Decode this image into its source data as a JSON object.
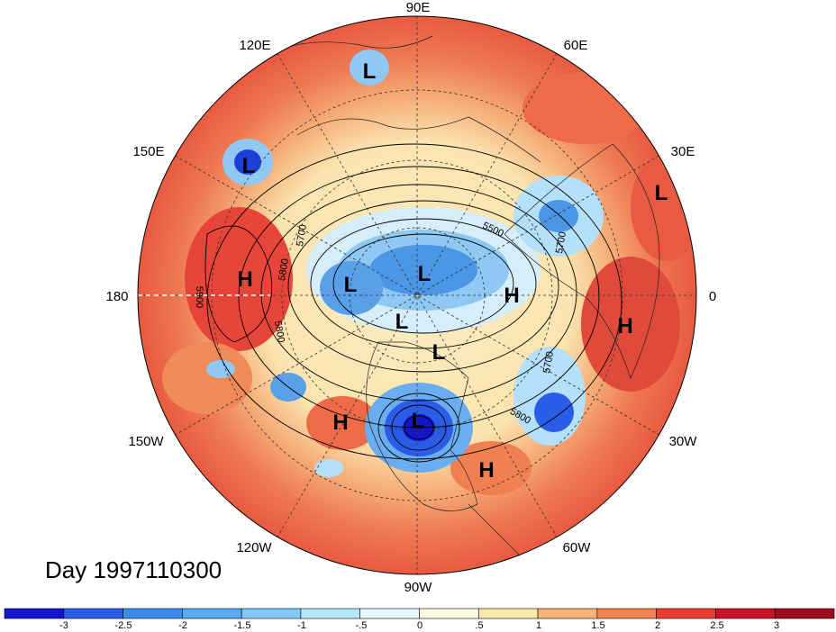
{
  "title": "Day 1997110300",
  "map": {
    "projection": "north-polar-stereographic",
    "longitude_labels": [
      {
        "text": "90E",
        "lon": 90
      },
      {
        "text": "60E",
        "lon": 60
      },
      {
        "text": "30E",
        "lon": 30
      },
      {
        "text": "0",
        "lon": 0
      },
      {
        "text": "30W",
        "lon": -30
      },
      {
        "text": "60W",
        "lon": -60
      },
      {
        "text": "90W",
        "lon": -90
      },
      {
        "text": "120W",
        "lon": -120
      },
      {
        "text": "150W",
        "lon": -150
      },
      {
        "text": "180",
        "lon": 180
      },
      {
        "text": "150E",
        "lon": 150
      },
      {
        "text": "120E",
        "lon": 120
      }
    ],
    "pressure_centers": [
      {
        "label": "L",
        "name": "low-center"
      },
      {
        "label": "L",
        "name": "low-center"
      },
      {
        "label": "L",
        "name": "low-center"
      },
      {
        "label": "L",
        "name": "low-center"
      },
      {
        "label": "L",
        "name": "low-center"
      },
      {
        "label": "L",
        "name": "low-center"
      },
      {
        "label": "L",
        "name": "low-center"
      },
      {
        "label": "L",
        "name": "low-center"
      },
      {
        "label": "H",
        "name": "high-center"
      },
      {
        "label": "H",
        "name": "high-center"
      },
      {
        "label": "H",
        "name": "high-center"
      },
      {
        "label": "H",
        "name": "high-center"
      },
      {
        "label": "H",
        "name": "high-center"
      }
    ],
    "contour_labels": [
      "5500",
      "5700",
      "5700",
      "5700",
      "5800",
      "5800",
      "5800",
      "5900"
    ]
  },
  "colorbar": {
    "tick_labels": [
      "-3",
      "-2.5",
      "-2",
      "-1.5",
      "-1",
      "-.5",
      "0",
      ".5",
      "1",
      "1.5",
      "2",
      "2.5",
      "3"
    ],
    "colors": [
      "#1414d2",
      "#2a5ce8",
      "#3c8cf0",
      "#5aaaf5",
      "#82c8fa",
      "#b4e6fc",
      "#e6f8ff",
      "#fffae6",
      "#fce6aa",
      "#f8b478",
      "#f48250",
      "#e83c32",
      "#c81428",
      "#a00a1e"
    ]
  }
}
